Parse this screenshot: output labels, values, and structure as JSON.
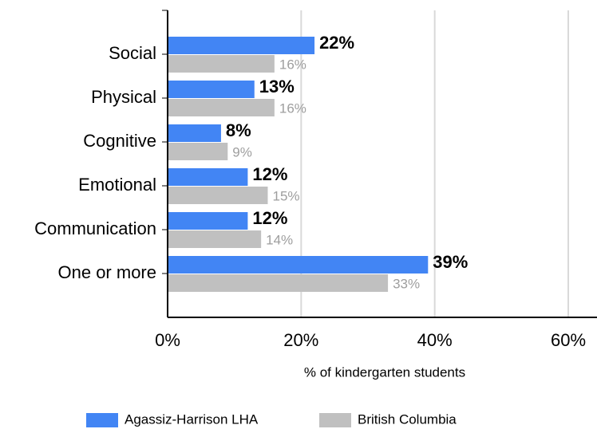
{
  "chart_data": {
    "type": "bar",
    "orientation": "horizontal",
    "categories": [
      "Social",
      "Physical",
      "Cognitive",
      "Emotional",
      "Communication",
      "One or more"
    ],
    "series": [
      {
        "name": "Agassiz-Harrison LHA",
        "color": "#4285f4",
        "values": [
          22,
          13,
          8,
          12,
          12,
          39
        ],
        "value_labels": [
          "22%",
          "13%",
          "8%",
          "12%",
          "12%",
          "39%"
        ]
      },
      {
        "name": "British Columbia",
        "color": "#c0c0c0",
        "values": [
          16,
          16,
          9,
          15,
          14,
          33
        ],
        "value_labels": [
          "16%",
          "16%",
          "9%",
          "15%",
          "14%",
          "33%"
        ]
      }
    ],
    "xlim": [
      0,
      60
    ],
    "xticks": [
      {
        "value": 0,
        "label": "0%"
      },
      {
        "value": 20,
        "label": "20%"
      },
      {
        "value": 40,
        "label": "40%"
      },
      {
        "value": 60,
        "label": "60%"
      }
    ],
    "xlabel": "% of kindergarten students",
    "grid": true,
    "legend": "bottom"
  }
}
